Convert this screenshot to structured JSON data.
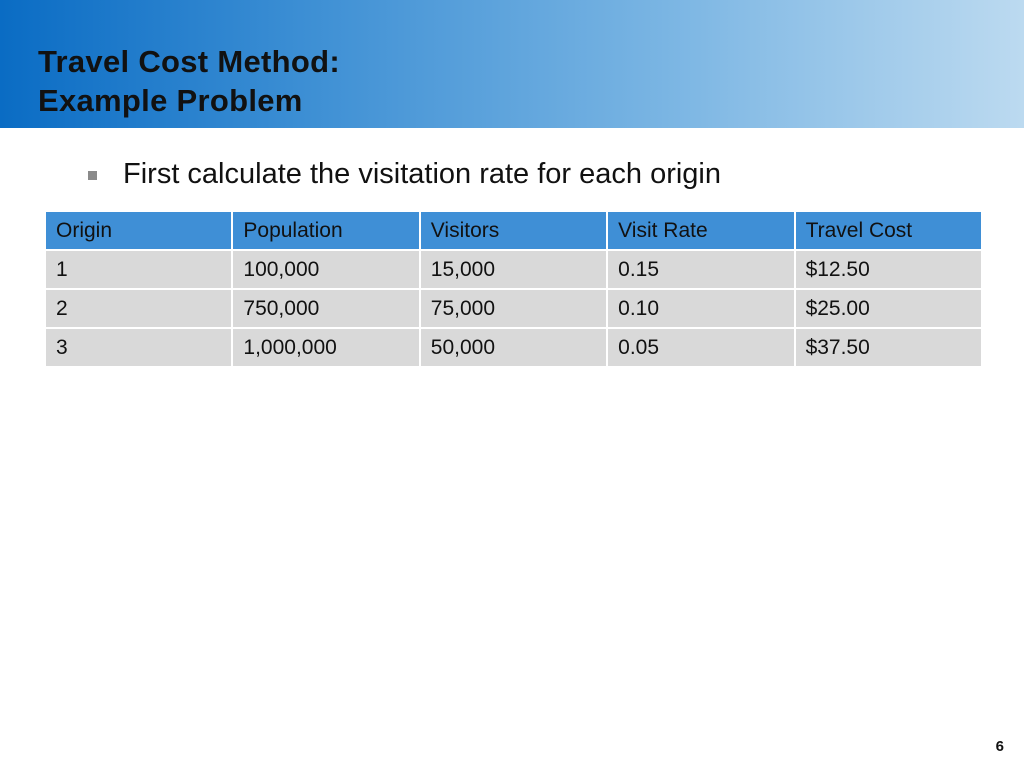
{
  "slide": {
    "title_line1": "Travel Cost Method:",
    "title_line2": "Example Problem",
    "bullet": "First calculate the visitation rate for each origin",
    "page_number": "6"
  },
  "table": {
    "headers": [
      "Origin",
      "Population",
      "Visitors",
      "Visit Rate",
      "Travel Cost"
    ],
    "rows": [
      [
        "1",
        "100,000",
        "15,000",
        "0.15",
        "$12.50"
      ],
      [
        "2",
        "750,000",
        "75,000",
        "0.10",
        "$25.00"
      ],
      [
        "3",
        "1,000,000",
        "50,000",
        "0.05",
        "$37.50"
      ]
    ]
  },
  "colors": {
    "header_fill": "#3f8fd6",
    "cell_fill": "#d9d9d9",
    "title_gradient_start": "#0a6cc4",
    "title_gradient_end": "#bcdaf0"
  }
}
